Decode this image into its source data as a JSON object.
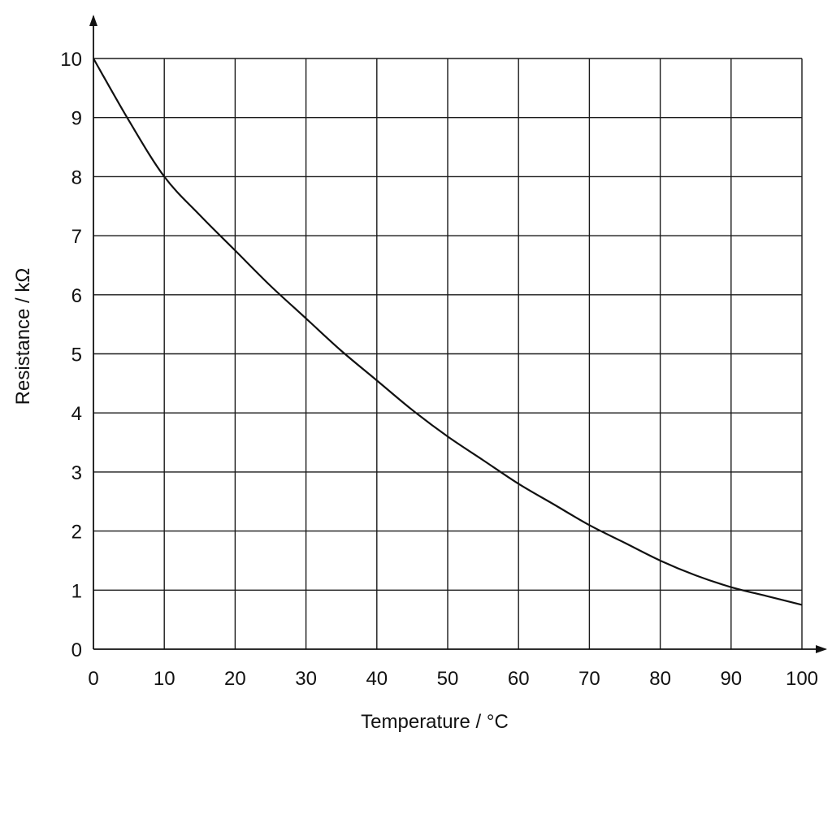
{
  "chart_data": {
    "type": "line",
    "title": "",
    "xlabel": "Temperature / °C",
    "ylabel": "Resistance / kΩ",
    "xlim": [
      0,
      100
    ],
    "ylim": [
      0,
      10
    ],
    "xticks": [
      0,
      10,
      20,
      30,
      40,
      50,
      60,
      70,
      80,
      90,
      100
    ],
    "yticks": [
      0,
      1,
      2,
      3,
      4,
      5,
      6,
      7,
      8,
      9,
      10
    ],
    "grid": true,
    "series": [
      {
        "x": [
          0,
          5,
          10,
          15,
          20,
          25,
          30,
          35,
          40,
          45,
          50,
          55,
          60,
          65,
          70,
          75,
          80,
          85,
          90,
          95,
          100
        ],
        "y": [
          10.0,
          8.95,
          8.0,
          7.35,
          6.75,
          6.15,
          5.6,
          5.05,
          4.55,
          4.05,
          3.6,
          3.2,
          2.8,
          2.45,
          2.1,
          1.8,
          1.5,
          1.25,
          1.05,
          0.9,
          0.75
        ]
      }
    ],
    "colors": {
      "line": "#111111",
      "grid": "#1a1a1a",
      "background": "#ffffff"
    }
  }
}
